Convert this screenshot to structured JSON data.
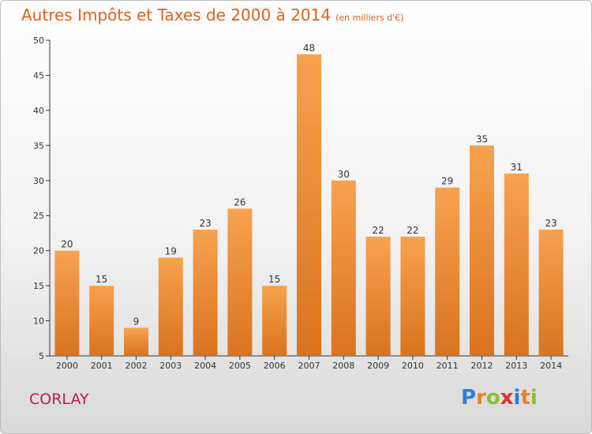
{
  "header": {
    "title": "Autres Impôts et Taxes de 2000 à 2014",
    "subtitle": "(en milliers d'€)"
  },
  "footer": {
    "commune": "CORLAY",
    "logo": {
      "text": "Proxiti",
      "letters": [
        {
          "char": "P",
          "color": "#2a7fd4"
        },
        {
          "char": "r",
          "color": "#e8802a"
        },
        {
          "char": "o",
          "color": "#8bbf2f"
        },
        {
          "char": "x",
          "color": "#d9342b"
        },
        {
          "char": "i",
          "color": "#2a7fd4"
        },
        {
          "char": "t",
          "color": "#e8802a"
        },
        {
          "char": "i",
          "color": "#8bbf2f"
        }
      ]
    }
  },
  "chart_data": {
    "type": "bar",
    "categories": [
      "2000",
      "2001",
      "2002",
      "2003",
      "2004",
      "2005",
      "2006",
      "2007",
      "2008",
      "2009",
      "2010",
      "2011",
      "2012",
      "2013",
      "2014"
    ],
    "values": [
      20,
      15,
      9,
      19,
      23,
      26,
      15,
      48,
      30,
      22,
      22,
      29,
      35,
      31,
      23
    ],
    "ylim": [
      5,
      50
    ],
    "yticks": [
      5,
      10,
      15,
      20,
      25,
      30,
      35,
      40,
      45,
      50
    ],
    "grid": false,
    "bar_color_top": "#f7a24f",
    "bar_color_bottom": "#d9731f"
  }
}
